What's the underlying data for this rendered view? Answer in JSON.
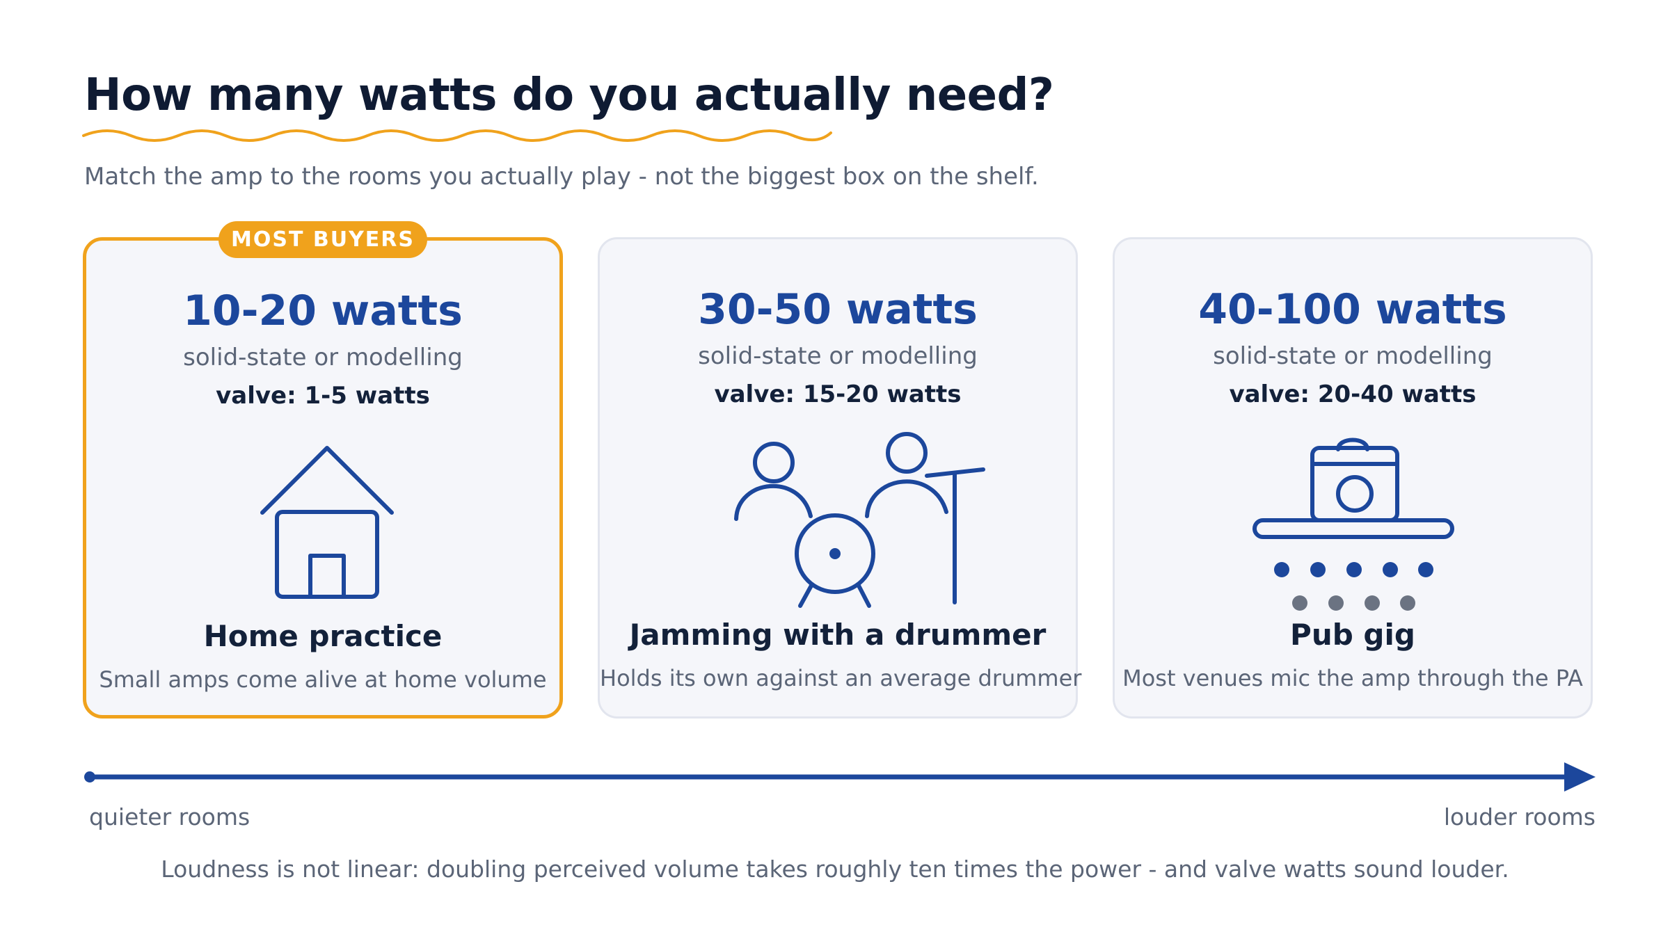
{
  "header": {
    "title": "How many watts do you actually need?",
    "subtitle": "Match the amp to the rooms you actually play - not the biggest box on the shelf."
  },
  "cards": [
    {
      "badge": "MOST BUYERS",
      "watts": "10-20 watts",
      "type": "solid-state or modelling",
      "valve": "valve: 1-5 watts",
      "icon": "house-icon",
      "name": "Home practice",
      "description": "Small amps come alive at home volume"
    },
    {
      "watts": "30-50 watts",
      "type": "solid-state or modelling",
      "valve": "valve: 15-20 watts",
      "icon": "band-jam-icon",
      "name": "Jamming with a drummer",
      "description": "Holds its own against an average drummer"
    },
    {
      "watts": "40-100 watts",
      "type": "solid-state or modelling",
      "valve": "valve: 20-40 watts",
      "icon": "amp-on-stage-icon",
      "name": "Pub gig",
      "description": "Most venues mic the amp through the PA"
    }
  ],
  "scale": {
    "left_label": "quieter rooms",
    "right_label": "louder rooms"
  },
  "footnote": "Loudness is not linear: doubling perceived volume takes roughly ten times the power - and valve watts sound louder.",
  "colors": {
    "accent": "#f0a21c",
    "primary_blue": "#1c479c",
    "card_background": "#f5f6fa",
    "muted_text": "#5b6577",
    "dark_text": "#13213a"
  }
}
